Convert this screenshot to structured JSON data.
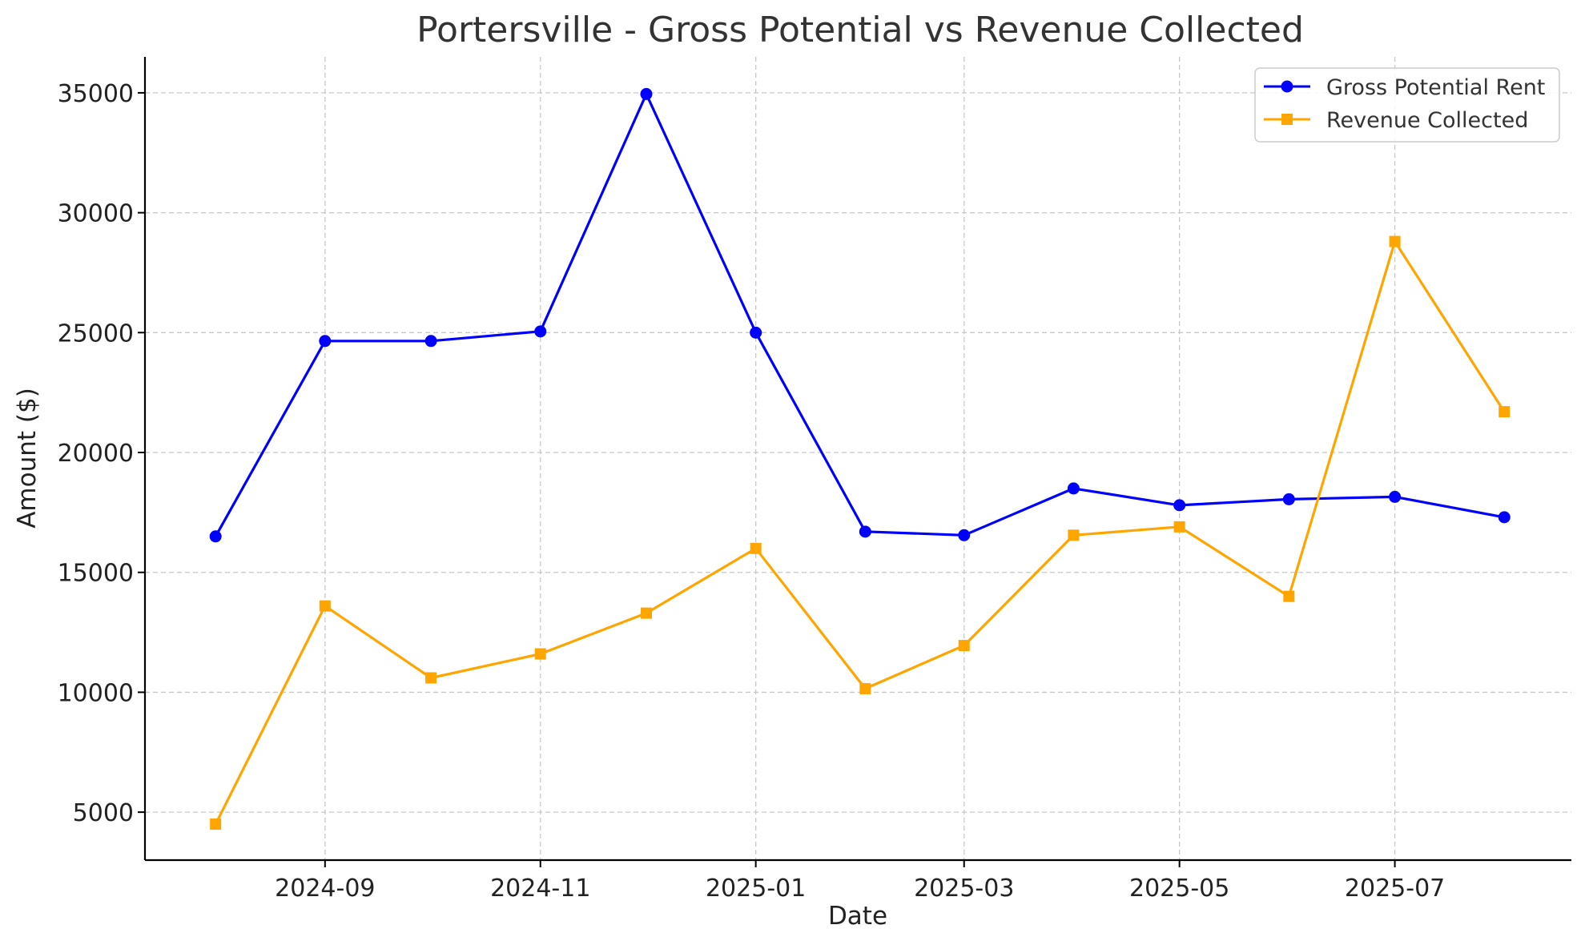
{
  "chart_data": {
    "type": "line",
    "title": "Portersville - Gross Potential vs Revenue Collected",
    "xlabel": "Date",
    "ylabel": "Amount ($)",
    "x": [
      "2024-08-01",
      "2024-09-01",
      "2024-10-01",
      "2024-11-01",
      "2024-12-01",
      "2025-01-01",
      "2025-02-01",
      "2025-03-01",
      "2025-04-01",
      "2025-05-01",
      "2025-06-01",
      "2025-07-01",
      "2025-08-01"
    ],
    "x_ticks": [
      "2024-09",
      "2024-11",
      "2025-01",
      "2025-03",
      "2025-05",
      "2025-07"
    ],
    "x_tick_dates": [
      "2024-09-01",
      "2024-11-01",
      "2025-01-01",
      "2025-03-01",
      "2025-05-01",
      "2025-07-01"
    ],
    "xlim": [
      "2024-07-12",
      "2025-08-20"
    ],
    "y_ticks": [
      5000,
      10000,
      15000,
      20000,
      25000,
      30000,
      35000
    ],
    "ylim": [
      3000,
      36500
    ],
    "grid": true,
    "legend_position": "top-right",
    "series": [
      {
        "name": "Gross Potential Rent",
        "color": "#0000ff",
        "marker": "circle",
        "values": [
          16500,
          24650,
          24650,
          25050,
          34950,
          25000,
          16700,
          16550,
          18500,
          17800,
          18050,
          18150,
          17300
        ]
      },
      {
        "name": "Revenue Collected",
        "color": "#ffa500",
        "marker": "square",
        "values": [
          4500,
          13600,
          10600,
          11600,
          13300,
          16000,
          10150,
          11950,
          16550,
          16900,
          14000,
          28800,
          21700
        ]
      }
    ]
  }
}
